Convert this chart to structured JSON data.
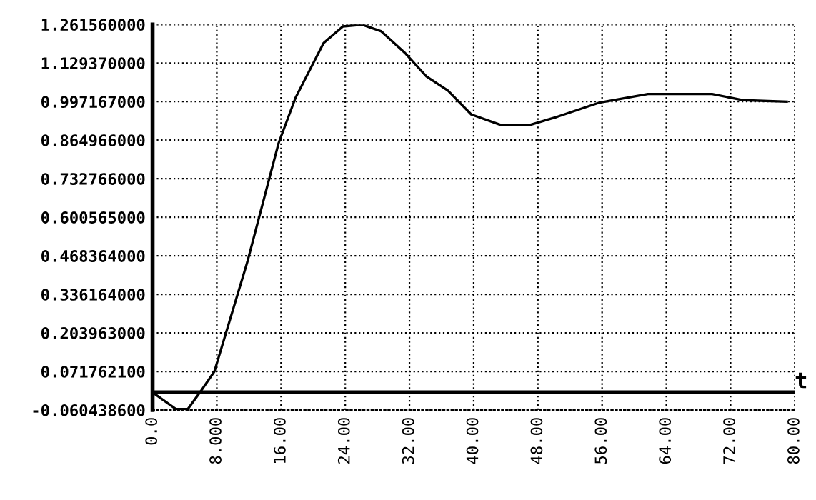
{
  "chart_data": {
    "type": "line",
    "xlabel": "t",
    "x": [
      0,
      2.9,
      4.4,
      5.9,
      7.7,
      11.8,
      15.7,
      17.8,
      21.3,
      23.7,
      26.1,
      28.5,
      31.4,
      34.1,
      36.8,
      39.7,
      43.3,
      47.1,
      50.4,
      55.7,
      61.7,
      69.7,
      73.6,
      79.0
    ],
    "series": [
      {
        "color": "#000000",
        "values": [
          0,
          -0.057,
          -0.057,
          0,
          0.072,
          0.447,
          0.855,
          1.01,
          1.198,
          1.255,
          1.261,
          1.238,
          1.165,
          1.084,
          1.035,
          0.953,
          0.918,
          0.918,
          0.945,
          0.994,
          1.023,
          1.023,
          1.002,
          0.997
        ]
      }
    ],
    "xlim": [
      0,
      80
    ],
    "xticks": [
      {
        "value": 0,
        "label": "0.0"
      },
      {
        "value": 8,
        "label": "8.000"
      },
      {
        "value": 16,
        "label": "16.00"
      },
      {
        "value": 24,
        "label": "24.00"
      },
      {
        "value": 32,
        "label": "32.00"
      },
      {
        "value": 40,
        "label": "40.00"
      },
      {
        "value": 48,
        "label": "48.00"
      },
      {
        "value": 56,
        "label": "56.00"
      },
      {
        "value": 64,
        "label": "64.00"
      },
      {
        "value": 72,
        "label": "72.00"
      },
      {
        "value": 80,
        "label": "80.00"
      }
    ],
    "ylim": [
      -0.0604386,
      1.26156
    ],
    "yticks": [
      {
        "value": -0.0604386,
        "label": "-0.060438600"
      },
      {
        "value": 0.0717621,
        "label": "0.071762100"
      },
      {
        "value": 0.203963,
        "label": "0.203963000"
      },
      {
        "value": 0.336164,
        "label": "0.336164000"
      },
      {
        "value": 0.468364,
        "label": "0.468364000"
      },
      {
        "value": 0.600565,
        "label": "0.600565000"
      },
      {
        "value": 0.732766,
        "label": "0.732766000"
      },
      {
        "value": 0.864966,
        "label": "0.864966000"
      },
      {
        "value": 0.997167,
        "label": "0.997167000"
      },
      {
        "value": 1.12937,
        "label": "1.129370000"
      },
      {
        "value": 1.26156,
        "label": "1.261560000"
      }
    ],
    "grid": true,
    "line_style": "solid"
  }
}
